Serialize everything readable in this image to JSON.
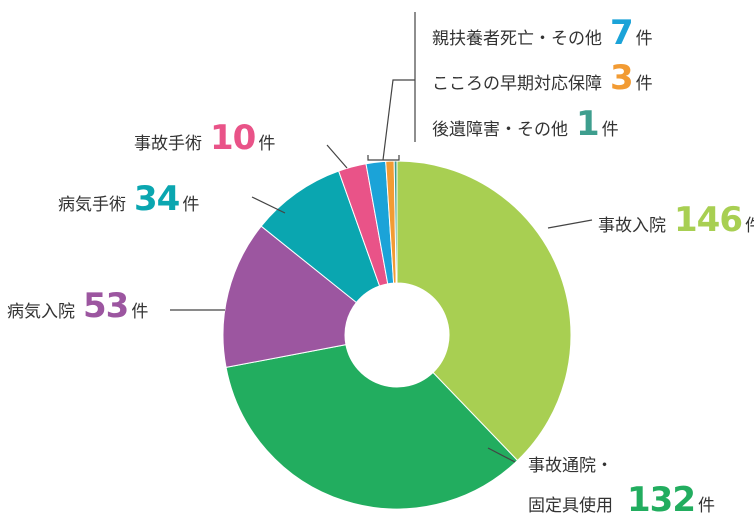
{
  "chart_data": {
    "type": "pie",
    "donut": true,
    "unit": "件",
    "slices": [
      {
        "name": "事故入院",
        "value": 146,
        "color": "#a8cf52"
      },
      {
        "name": "事故通院・固定具使用",
        "name_line1": "事故通院・",
        "name_line2": "固定具使用",
        "value": 132,
        "color": "#22ad5f"
      },
      {
        "name": "病気入院",
        "value": 53,
        "color": "#9c56a0"
      },
      {
        "name": "病気手術",
        "value": 34,
        "color": "#0aa6b0"
      },
      {
        "name": "事故手術",
        "value": 10,
        "color": "#e95388"
      },
      {
        "name": "親扶養者死亡・その他",
        "value": 7,
        "color": "#1ba3d8"
      },
      {
        "name": "こころの早期対応保障",
        "value": 3,
        "color": "#f29b33"
      },
      {
        "name": "後遺障害・その他",
        "value": 1,
        "color": "#3e9e8e"
      }
    ]
  }
}
